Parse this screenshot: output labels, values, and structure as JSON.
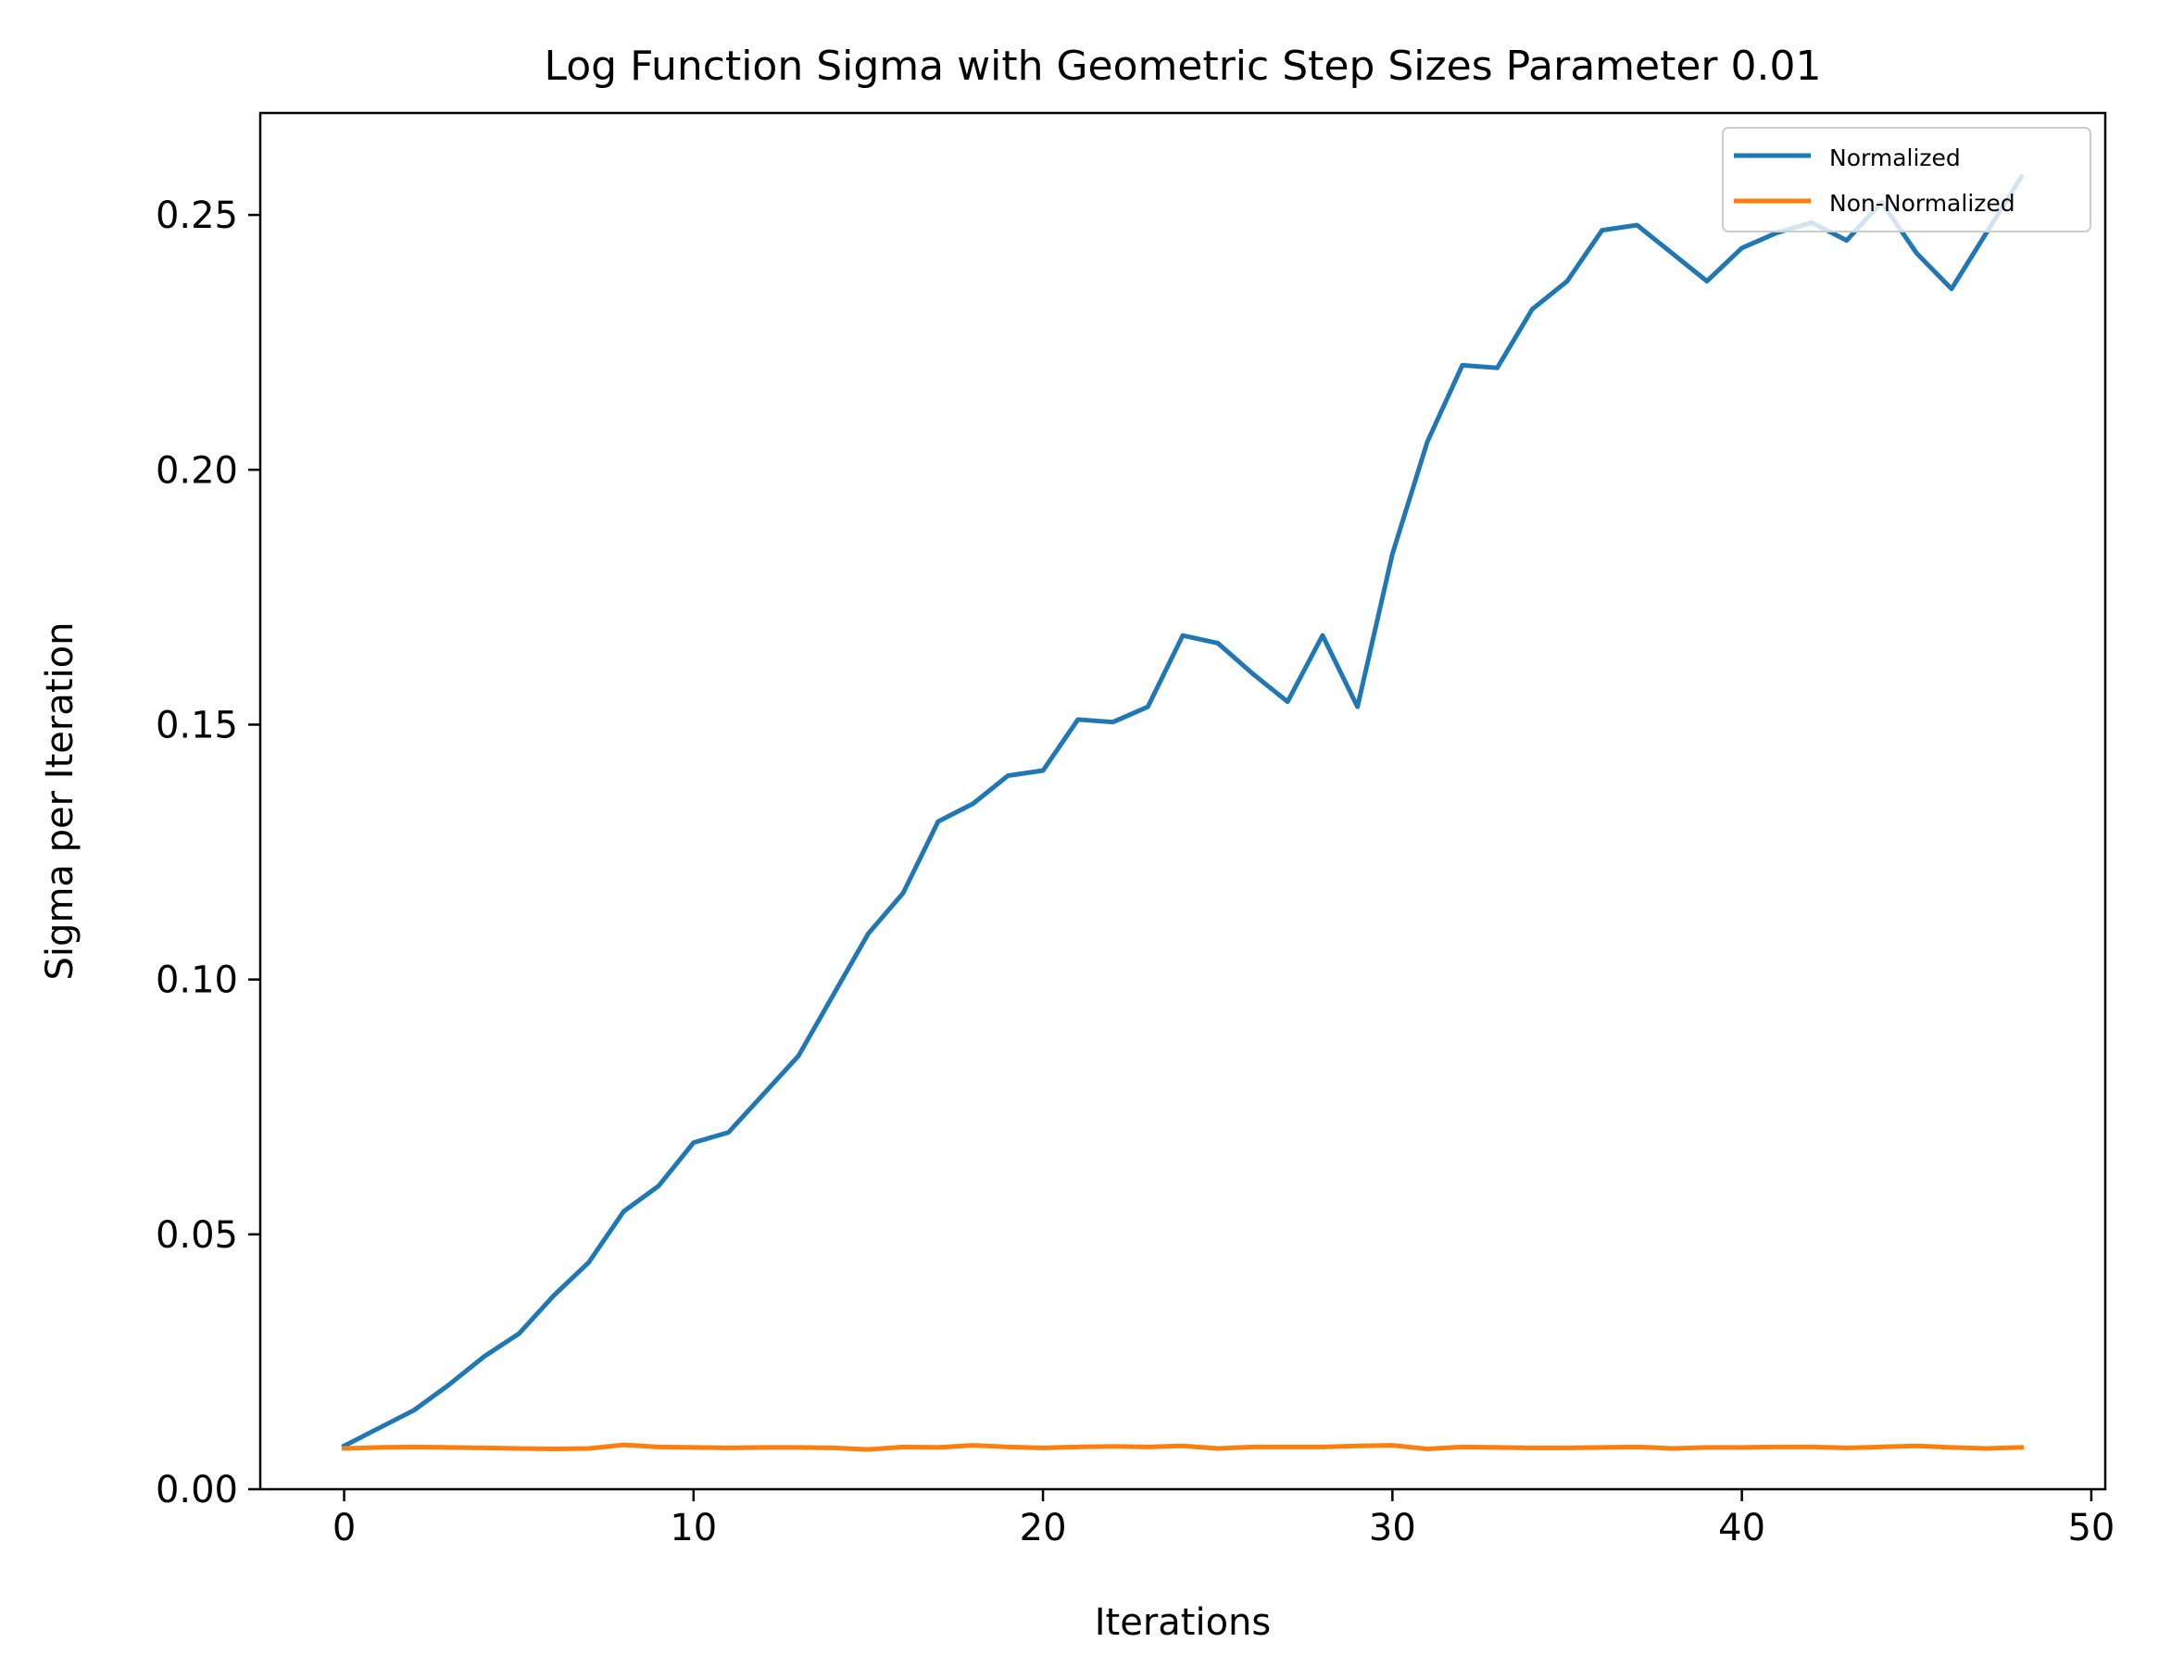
{
  "chart_data": {
    "type": "line",
    "title": "Log Function Sigma with Geometric Step Sizes Parameter 0.01",
    "xlabel": "Iterations",
    "ylabel": "Sigma per Iteration",
    "xlim": [
      -2.4,
      50.4
    ],
    "ylim": [
      0,
      0.27
    ],
    "x_ticks": [
      0,
      10,
      20,
      30,
      40,
      50
    ],
    "x_tick_labels": [
      "0",
      "10",
      "20",
      "30",
      "40",
      "50"
    ],
    "y_ticks": [
      0,
      0.05,
      0.1,
      0.15,
      0.2,
      0.25
    ],
    "y_tick_labels": [
      "0.00",
      "0.05",
      "0.10",
      "0.15",
      "0.20",
      "0.25"
    ],
    "grid": false,
    "legend_position": "top-right",
    "x": [
      0,
      1,
      2,
      3,
      4,
      5,
      6,
      7,
      8,
      9,
      10,
      11,
      12,
      13,
      14,
      15,
      16,
      17,
      18,
      19,
      20,
      21,
      22,
      23,
      24,
      25,
      26,
      27,
      28,
      29,
      30,
      31,
      32,
      33,
      34,
      35,
      36,
      37,
      38,
      39,
      40,
      41,
      42,
      43,
      44,
      45,
      46,
      47,
      48
    ],
    "series": [
      {
        "name": "Normalized",
        "color": "#1f77b4",
        "values": [
          0.0085,
          0.012,
          0.0155,
          0.0205,
          0.026,
          0.0305,
          0.038,
          0.0445,
          0.0545,
          0.0595,
          0.068,
          0.07,
          0.0775,
          0.085,
          0.097,
          0.109,
          0.117,
          0.131,
          0.1345,
          0.14,
          0.141,
          0.151,
          0.1505,
          0.1535,
          0.1675,
          0.166,
          0.16,
          0.1545,
          0.1675,
          0.1535,
          0.1835,
          0.2055,
          0.2205,
          0.22,
          0.2315,
          0.237,
          0.247,
          0.248,
          0.2425,
          0.237,
          0.2435,
          0.2465,
          0.2485,
          0.245,
          0.2525,
          0.2425,
          0.2355,
          0.2465,
          0.2575
        ]
      },
      {
        "name": "Non-Normalized",
        "color": "#ff7f0e",
        "values": [
          0.008,
          0.0082,
          0.0083,
          0.0082,
          0.0081,
          0.008,
          0.0079,
          0.008,
          0.0087,
          0.0083,
          0.0082,
          0.0081,
          0.0082,
          0.0082,
          0.0081,
          0.0078,
          0.0083,
          0.0082,
          0.0086,
          0.0083,
          0.0081,
          0.0083,
          0.0084,
          0.0083,
          0.0085,
          0.008,
          0.0083,
          0.0083,
          0.0083,
          0.0085,
          0.0086,
          0.0079,
          0.0083,
          0.0082,
          0.0081,
          0.0081,
          0.0082,
          0.0083,
          0.008,
          0.0082,
          0.0082,
          0.0083,
          0.0083,
          0.0081,
          0.0083,
          0.0085,
          0.0082,
          0.008,
          0.0082
        ]
      }
    ]
  }
}
